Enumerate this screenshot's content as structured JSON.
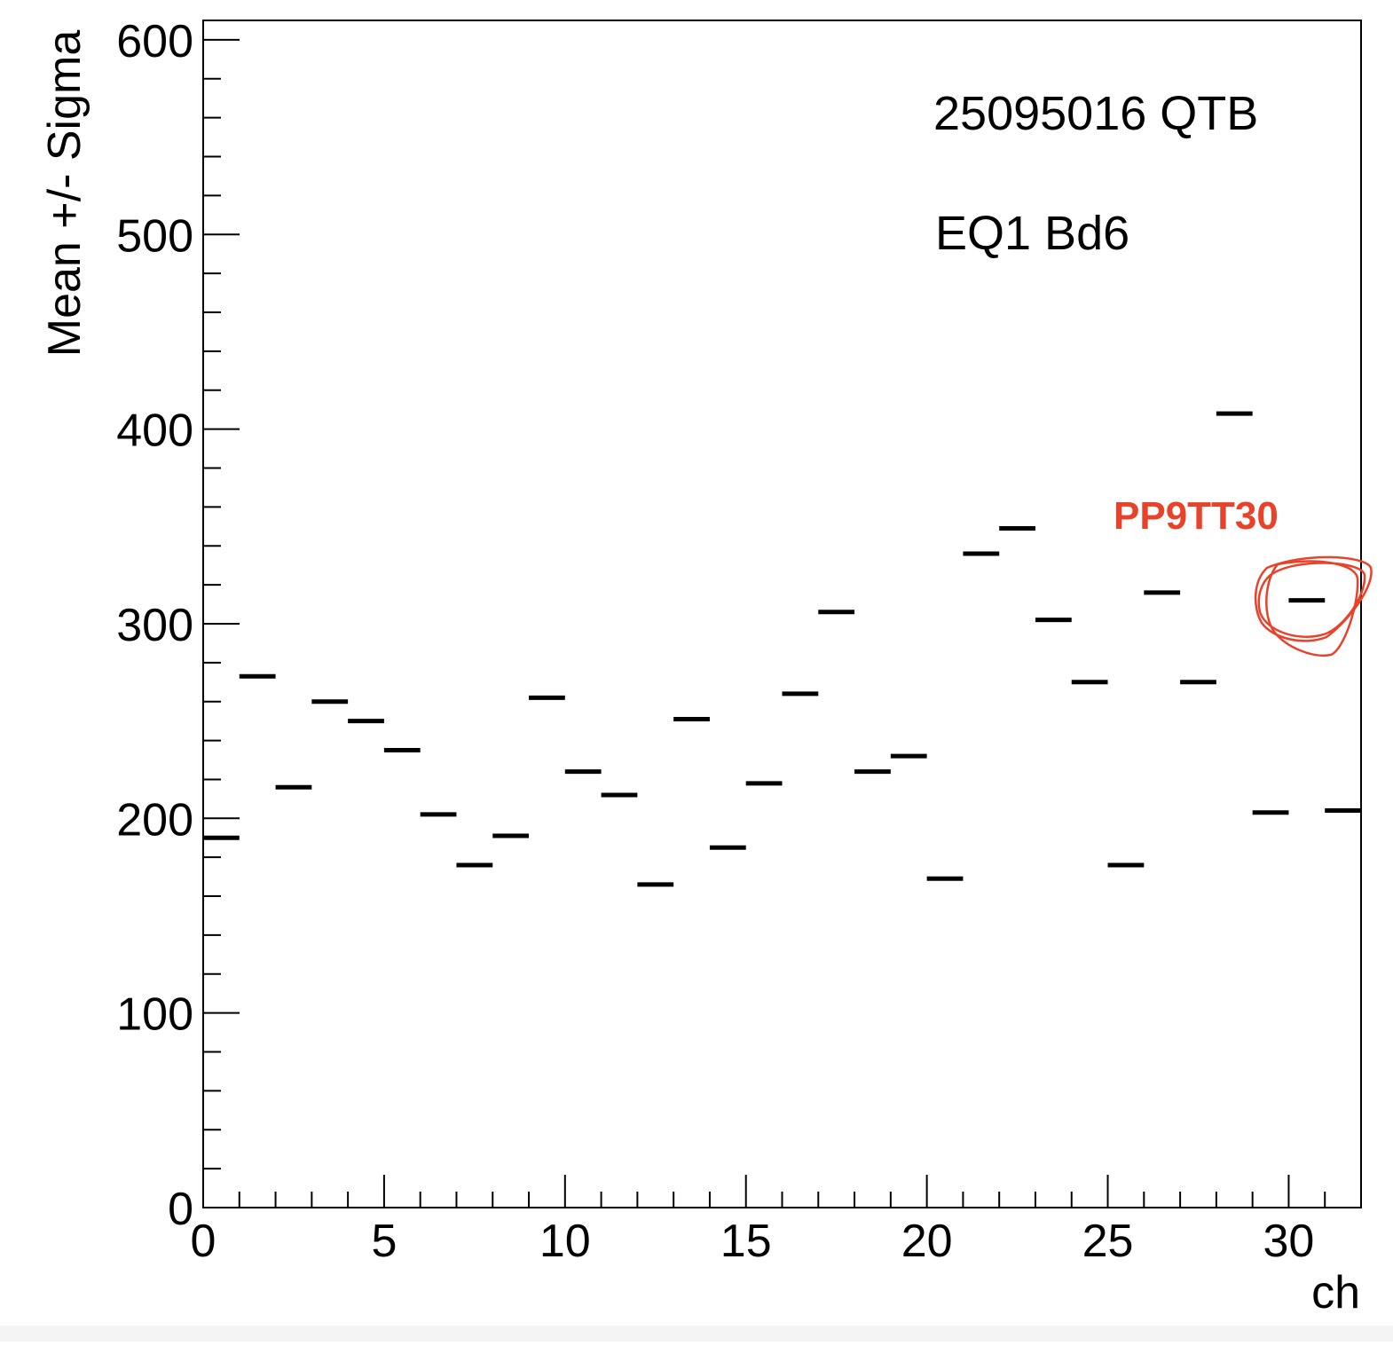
{
  "chart_data": {
    "type": "scatter",
    "title": "",
    "xlabel": "ch",
    "ylabel": "Mean +/- Sigma",
    "xlim": [
      0,
      32
    ],
    "ylim": [
      0,
      610
    ],
    "x_ticks": [
      0,
      5,
      10,
      15,
      20,
      25,
      30
    ],
    "y_ticks": [
      0,
      100,
      200,
      300,
      400,
      500,
      600
    ],
    "x_tick_labels": [
      "0",
      "5",
      "10",
      "15",
      "20",
      "25",
      "30"
    ],
    "y_tick_labels": [
      "0",
      "100",
      "200",
      "300",
      "400",
      "500",
      "600"
    ],
    "grid": false,
    "legend": "none",
    "annotations": [
      "25095016 QTB",
      "EQ1 Bd6"
    ],
    "highlight_label": "PP9TT30",
    "highlight_channel": 30,
    "highlight_color": "#e8432a",
    "marker_color": "#000000",
    "series": [
      {
        "x": [
          0,
          1,
          2,
          3,
          4,
          5,
          6,
          7,
          8,
          9,
          10,
          11,
          12,
          13,
          14,
          15,
          16,
          17,
          18,
          19,
          20,
          21,
          22,
          23,
          24,
          25,
          26,
          27,
          28,
          29,
          30,
          31
        ],
        "values": [
          190,
          273,
          216,
          260,
          250,
          235,
          202,
          176,
          191,
          262,
          224,
          212,
          166,
          251,
          185,
          218,
          264,
          306,
          224,
          232,
          169,
          336,
          349,
          302,
          270,
          176,
          316,
          270,
          408,
          203,
          312,
          204
        ]
      }
    ]
  }
}
